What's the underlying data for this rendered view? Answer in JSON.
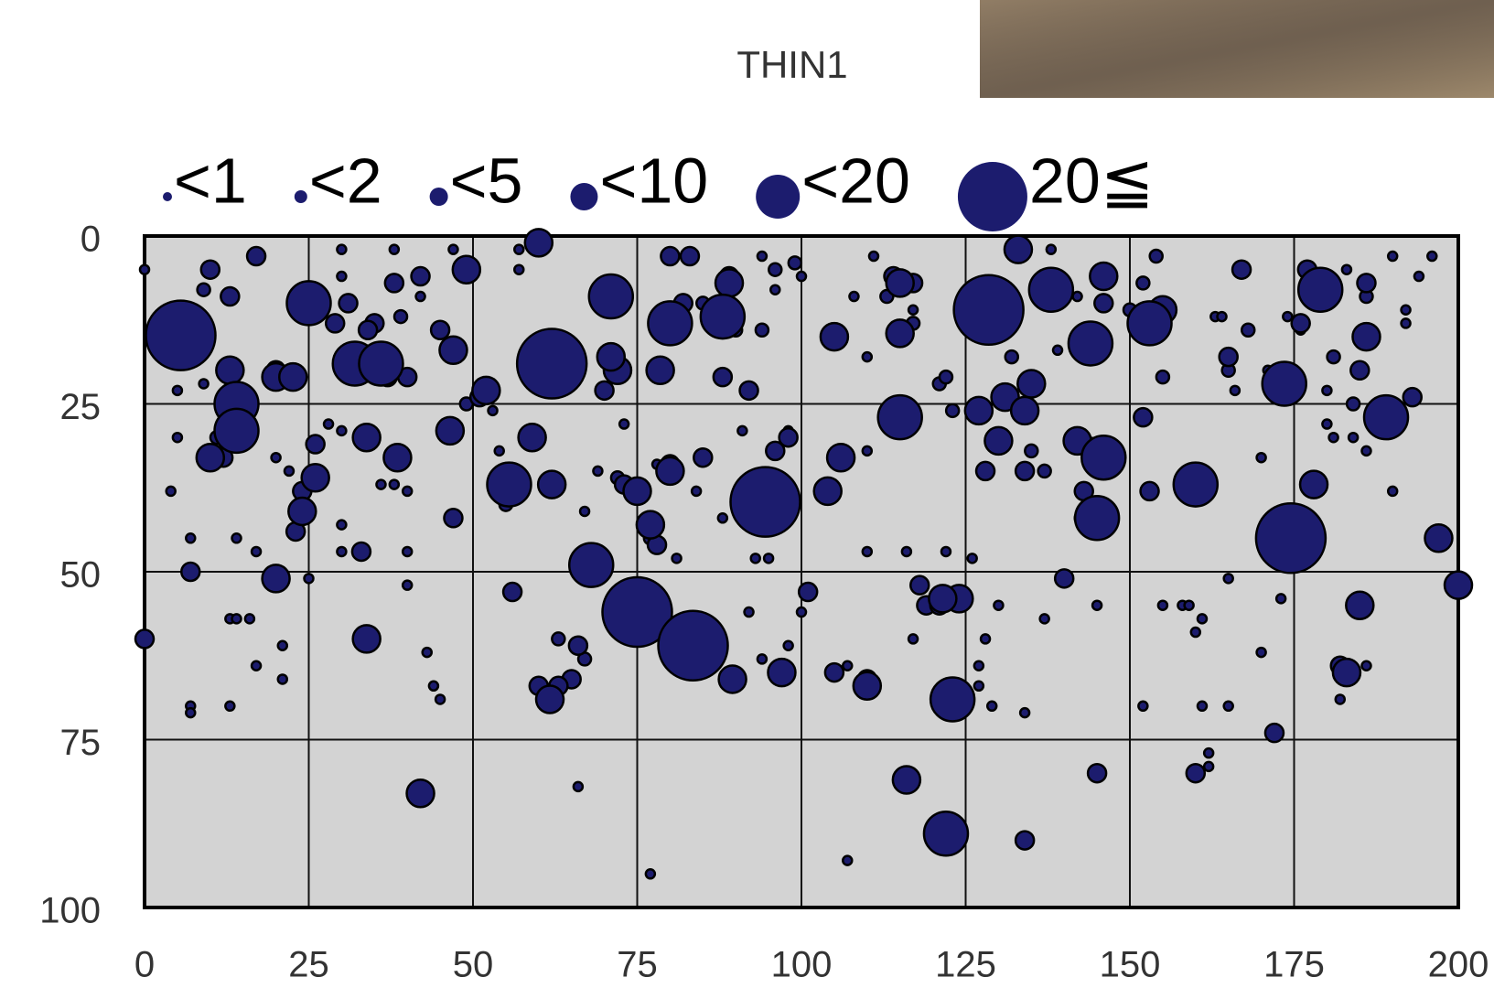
{
  "chart_data": {
    "type": "scatter",
    "title": "THIN1",
    "xlim": [
      0,
      200
    ],
    "xticks": [
      0,
      25,
      50,
      75,
      100,
      125,
      150,
      175,
      200
    ],
    "ylim": [
      0,
      100
    ],
    "yticks": [
      0,
      25,
      50,
      75,
      100
    ],
    "y_axis_inverted": true,
    "grid": true,
    "legend": "top",
    "series": [
      {
        "name": "<1",
        "color": "#1c1c6e",
        "x": [
          0,
          4,
          5,
          5,
          7,
          7,
          7,
          9,
          13,
          14,
          16,
          13,
          14,
          17,
          17,
          21,
          21,
          20,
          25,
          22,
          28,
          30,
          30,
          30,
          30,
          36,
          38,
          40,
          40,
          40,
          43,
          44,
          45,
          42,
          47,
          30,
          38,
          57,
          57,
          54,
          53,
          67,
          66,
          69,
          73,
          73,
          78,
          77,
          81,
          84,
          88,
          91,
          92,
          94,
          98,
          98,
          96,
          94,
          100,
          93,
          95,
          100,
          107,
          107,
          110,
          110,
          108,
          110,
          111,
          116,
          117,
          117,
          122,
          126,
          127,
          127,
          128,
          130,
          129,
          134,
          137,
          138,
          142,
          139,
          145,
          145,
          152,
          155,
          158,
          159,
          160,
          161,
          161,
          162,
          162,
          165,
          165,
          163,
          164,
          166,
          170,
          170,
          171,
          173,
          174,
          176,
          180,
          180,
          181,
          183,
          184,
          186,
          190,
          190,
          192,
          192,
          194,
          196,
          186,
          182
        ],
        "values": [
          5,
          38,
          30,
          23,
          45,
          70,
          71,
          22,
          57,
          57,
          57,
          70,
          45,
          64,
          47,
          61,
          66,
          33,
          51,
          35,
          28,
          29,
          47,
          43,
          2,
          37,
          37,
          47,
          38,
          52,
          62,
          67,
          69,
          9,
          2,
          6,
          2,
          2,
          5,
          32,
          26,
          41,
          82,
          35,
          28,
          55,
          34,
          95,
          48,
          38,
          42,
          29,
          56,
          63,
          61,
          29,
          8,
          3,
          6,
          48,
          48,
          56,
          64,
          93,
          32,
          47,
          9,
          18,
          3,
          47,
          11,
          60,
          47,
          48,
          64,
          67,
          60,
          55,
          70,
          71,
          57,
          2,
          9,
          17,
          55,
          80,
          70,
          55,
          55,
          55,
          59,
          57,
          70,
          77,
          79,
          70,
          51,
          12,
          12,
          23,
          33,
          62,
          20,
          54,
          12,
          14,
          23,
          28,
          30,
          5,
          30,
          32,
          3,
          38,
          13,
          11,
          6,
          3,
          64,
          69
        ]
      },
      {
        "name": "<2",
        "color": "#1c1c6e",
        "x": [
          9,
          11,
          39,
          49,
          55,
          63,
          67,
          72,
          77,
          85,
          90,
          94,
          96,
          99,
          113,
          117,
          121,
          123,
          137,
          144,
          150,
          152,
          154,
          155,
          165,
          168,
          178,
          181,
          184,
          186,
          122,
          132,
          135
        ],
        "values": [
          8,
          30,
          12,
          25,
          40,
          60,
          63,
          36,
          45,
          10,
          14,
          14,
          5,
          4,
          9,
          13,
          22,
          26,
          35,
          31,
          11,
          7,
          3,
          21,
          20,
          14,
          6,
          18,
          25,
          9,
          21,
          18,
          32
        ]
      },
      {
        "name": "<5",
        "color": "#1c1c6e",
        "x": [
          0,
          10,
          17,
          13,
          38,
          45,
          20,
          7,
          12,
          23,
          26,
          33,
          24,
          47,
          56,
          60,
          66,
          65,
          37,
          40,
          35,
          80,
          83,
          89,
          82,
          88,
          92,
          80,
          78,
          96,
          101,
          105,
          110,
          118,
          123,
          128,
          134,
          140,
          143,
          143,
          146,
          152,
          153,
          165,
          167,
          177,
          176,
          186,
          189,
          193,
          182,
          185,
          172,
          160,
          145,
          134,
          119,
          121,
          114,
          117,
          85,
          98,
          73,
          70,
          63,
          51,
          29,
          31,
          34,
          42
        ],
        "values": [
          60,
          5,
          3,
          9,
          7,
          14,
          20,
          50,
          33,
          44,
          31,
          47,
          38,
          42,
          53,
          67,
          61,
          66,
          21,
          21,
          13,
          3,
          3,
          6,
          10,
          21,
          23,
          34,
          46,
          32,
          53,
          65,
          66,
          52,
          54,
          35,
          35,
          51,
          38,
          42,
          10,
          27,
          38,
          18,
          5,
          5,
          13,
          7,
          27,
          24,
          64,
          20,
          74,
          80,
          80,
          90,
          55,
          55,
          6,
          7,
          33,
          30,
          37,
          23,
          67,
          24,
          13,
          10,
          14,
          6
        ]
      },
      {
        "name": "<10",
        "color": "#1c1c6e",
        "x": [
          49,
          47,
          60,
          52,
          46.5,
          59,
          62,
          24,
          20,
          26,
          33.8,
          38.5,
          10,
          13,
          20,
          22.6,
          33.8,
          42,
          61.7,
          72,
          78.5,
          75,
          77,
          80,
          89.5,
          97,
          104,
          106,
          105,
          115,
          115,
          127,
          130,
          131,
          134,
          135,
          142,
          146,
          186,
          178,
          197,
          200,
          185,
          183,
          110,
          124,
          121.5,
          116,
          71,
          133,
          155,
          89
        ],
        "values": [
          5,
          17,
          1,
          23,
          29,
          30,
          37,
          41,
          51,
          36,
          30,
          33,
          33,
          20,
          21,
          21,
          60,
          83,
          69,
          20,
          20,
          38,
          43,
          35,
          66,
          65,
          38,
          33,
          15,
          7,
          14.5,
          26,
          30.5,
          24,
          26,
          22,
          30.5,
          6,
          15,
          37,
          45,
          52,
          55,
          65,
          67,
          54,
          54,
          81,
          18,
          2,
          11,
          7
        ]
      },
      {
        "name": "<20",
        "color": "#1c1c6e",
        "x": [
          25,
          14,
          14,
          32,
          36,
          68,
          80,
          88,
          138,
          144,
          153,
          179,
          173.5,
          189,
          115,
          146,
          145,
          160,
          55.5,
          123,
          122,
          71
        ],
        "values": [
          10,
          25,
          29,
          19,
          19,
          49,
          13,
          12,
          8,
          16,
          13,
          8,
          22,
          27,
          27,
          33,
          42,
          37,
          37,
          69,
          89,
          9
        ]
      },
      {
        "name": "20≦",
        "color": "#1c1c6e",
        "x": [
          5.5,
          62,
          128.5,
          94.5,
          75,
          174.5,
          83.5
        ],
        "values": [
          14.8,
          19,
          11,
          39.6,
          56,
          45,
          61
        ]
      }
    ]
  }
}
